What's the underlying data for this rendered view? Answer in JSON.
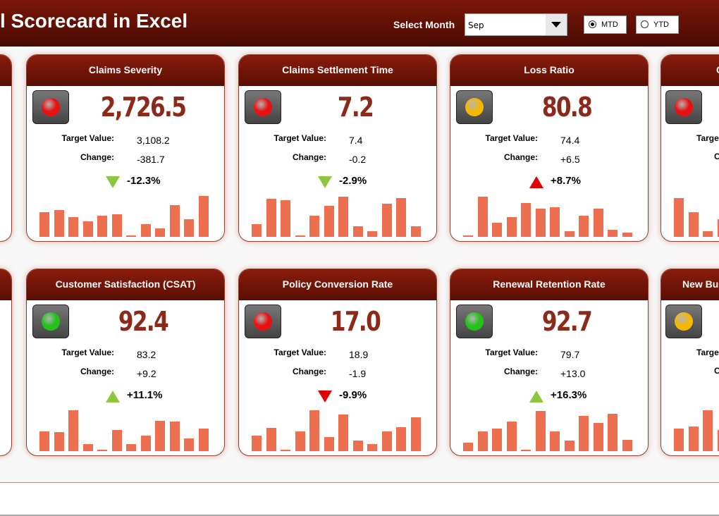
{
  "header": {
    "title": "l Scorecard in Excel",
    "select_label": "Select Month",
    "month": "Sep",
    "options": [
      "MTD",
      "YTD"
    ],
    "selected": 0
  },
  "cards": [
    {
      "title": "Claims Severity",
      "status": "#e81010",
      "value": "2,726.5",
      "target_label": "Target Value:",
      "target": "3,108.2",
      "change_label": "Change:",
      "change": "-381.7",
      "change_pct": "-12.3%",
      "arrow": "down",
      "arrow_color": "#8dc63f",
      "bars": [
        35,
        38,
        28,
        22,
        30,
        32,
        2,
        18,
        12,
        45,
        25,
        58
      ]
    },
    {
      "title": "Claims Settlement Time",
      "status": "#e81010",
      "value": "7.2",
      "target_label": "Target Value:",
      "target": "7.4",
      "change_label": "Change:",
      "change": "-0.2",
      "change_pct": "-2.9%",
      "arrow": "down",
      "arrow_color": "#8dc63f",
      "bars": [
        18,
        54,
        52,
        2,
        30,
        44,
        57,
        15,
        8,
        47,
        55,
        15
      ]
    },
    {
      "title": "Loss Ratio",
      "status": "#f5b800",
      "value": "80.8",
      "target_label": "Target Value:",
      "target": "74.4",
      "change_label": "Change:",
      "change": "+6.5",
      "change_pct": "+8.7%",
      "arrow": "up",
      "arrow_color": "#e00000",
      "bars": [
        2,
        57,
        20,
        28,
        48,
        40,
        42,
        8,
        30,
        40,
        10,
        6
      ]
    },
    {
      "title": "C",
      "status": "#e81010",
      "target_label": "Targe",
      "change_label": "C",
      "bars": [
        55,
        35,
        8,
        25
      ]
    },
    {
      "title": "Customer Satisfaction (CSAT)",
      "status": "#22c21a",
      "value": "92.4",
      "target_label": "Target Value:",
      "target": "83.2",
      "change_label": "Change:",
      "change": "+9.2",
      "change_pct": "+11.1%",
      "arrow": "up",
      "arrow_color": "#8dc63f",
      "bars": [
        28,
        27,
        58,
        10,
        2,
        30,
        10,
        22,
        43,
        42,
        18,
        32
      ]
    },
    {
      "title": "Policy Conversion Rate",
      "status": "#e81010",
      "value": "17.0",
      "target_label": "Target Value:",
      "target": "18.9",
      "change_label": "Change:",
      "change": "-1.9",
      "change_pct": "-9.9%",
      "arrow": "down",
      "arrow_color": "#e00000",
      "bars": [
        22,
        33,
        2,
        28,
        58,
        20,
        52,
        15,
        10,
        28,
        34,
        48
      ]
    },
    {
      "title": "Renewal Retention Rate",
      "status": "#22c21a",
      "value": "92.7",
      "target_label": "Target Value:",
      "target": "79.7",
      "change_label": "Change:",
      "change": "+13.0",
      "change_pct": "+16.3%",
      "arrow": "up",
      "arrow_color": "#8dc63f",
      "bars": [
        12,
        28,
        32,
        42,
        2,
        57,
        28,
        15,
        50,
        40,
        53,
        16
      ]
    },
    {
      "title": "New Bus",
      "status": "#f5b800",
      "target_label": "Targe",
      "change_label": "C",
      "bars": [
        32,
        35,
        58,
        30
      ]
    }
  ]
}
